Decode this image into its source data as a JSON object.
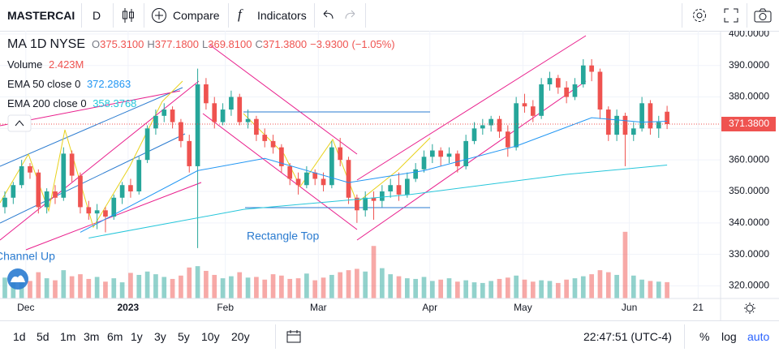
{
  "toolbar": {
    "symbol": "MASTERCAI",
    "interval": "D",
    "compare": "Compare",
    "indicators": "Indicators"
  },
  "chart_data": {
    "type": "candlestick",
    "legend": {
      "symbol": "MA",
      "interval": "1D",
      "exchange": "NYSE",
      "o": "O",
      "h": "H",
      "l": "L",
      "c": "C",
      "open_label": "375.3100",
      "high_label": "377.1800",
      "low_label": "369.8100",
      "close_label": "371.3800",
      "change": "−3.9300",
      "change_pct": "(−1.05%)"
    },
    "volume_name": "Volume",
    "volume_label": "2.423M",
    "open": [
      345,
      348,
      352,
      358,
      356,
      345,
      350,
      348,
      362,
      355,
      345,
      343,
      344,
      342,
      348,
      352,
      350,
      360,
      370,
      374,
      376,
      372,
      366,
      358,
      384,
      378,
      372,
      376,
      380,
      372,
      373,
      368,
      366,
      364,
      358,
      354,
      352,
      356,
      354,
      352,
      364,
      360,
      348,
      344,
      348,
      347,
      350,
      352,
      349,
      354,
      357,
      361,
      363,
      361,
      362,
      358,
      366,
      370,
      371,
      373,
      369,
      364,
      378,
      377,
      374,
      384,
      386,
      383,
      380,
      384,
      390,
      388,
      376,
      368,
      374,
      368,
      370,
      378,
      370,
      375.31
    ],
    "high": [
      350,
      353,
      360,
      359,
      357,
      351,
      352,
      364,
      363,
      356,
      347,
      346,
      345,
      349,
      353,
      354,
      361,
      371,
      376,
      378,
      377,
      373,
      368,
      389,
      386,
      380,
      378,
      382,
      381,
      376,
      374,
      370,
      368,
      365,
      359,
      356,
      358,
      357,
      356,
      366,
      367,
      361,
      349,
      350,
      350,
      352,
      354,
      356,
      356,
      359,
      363,
      365,
      364,
      364,
      363,
      368,
      372,
      373,
      374,
      374,
      371,
      380,
      381,
      379,
      386,
      388,
      387,
      385,
      386,
      392,
      392,
      389,
      377,
      376,
      375,
      372,
      380,
      379,
      374,
      377.18
    ],
    "low": [
      343,
      346,
      351,
      354,
      343,
      343,
      346,
      347,
      353,
      343,
      341,
      338,
      337,
      341,
      346,
      348,
      349,
      359,
      368,
      372,
      370,
      364,
      356,
      332,
      376,
      370,
      371,
      374,
      371,
      370,
      366,
      364,
      362,
      356,
      352,
      349,
      351,
      352,
      350,
      351,
      358,
      346,
      340,
      342,
      341,
      345,
      348,
      347,
      348,
      353,
      356,
      359,
      358,
      359,
      356,
      357,
      365,
      368,
      369,
      367,
      361,
      363,
      375,
      372,
      373,
      382,
      381,
      378,
      379,
      383,
      385,
      373,
      366,
      366,
      358,
      366,
      369,
      368,
      367,
      369.81
    ],
    "close": [
      348,
      352,
      358,
      356,
      345,
      350,
      348,
      362,
      355,
      345,
      343,
      344,
      342,
      348,
      352,
      350,
      360,
      370,
      374,
      376,
      372,
      366,
      358,
      384,
      378,
      372,
      376,
      380,
      372,
      373,
      368,
      366,
      364,
      358,
      354,
      352,
      356,
      354,
      352,
      364,
      360,
      348,
      344,
      348,
      347,
      350,
      352,
      349,
      354,
      357,
      361,
      363,
      361,
      362,
      358,
      366,
      370,
      371,
      373,
      369,
      364,
      378,
      377,
      374,
      384,
      386,
      383,
      380,
      384,
      390,
      388,
      376,
      368,
      374,
      368,
      370,
      378,
      370,
      372,
      371.38
    ],
    "volume": [
      3.1,
      2.8,
      3.4,
      2.6,
      3.9,
      3.0,
      2.7,
      4.2,
      3.3,
      3.6,
      2.9,
      3.2,
      2.5,
      3.0,
      2.4,
      3.8,
      3.5,
      4.0,
      3.6,
      3.2,
      2.9,
      3.4,
      4.6,
      4.8,
      4.1,
      3.5,
      3.0,
      3.3,
      3.9,
      3.1,
      3.2,
      2.8,
      3.6,
      3.4,
      2.9,
      3.0,
      3.7,
      2.7,
      3.1,
      3.5,
      3.9,
      4.2,
      4.4,
      4.0,
      7.8,
      4.5,
      3.6,
      3.3,
      3.0,
      2.9,
      3.2,
      2.6,
      2.8,
      3.0,
      2.5,
      2.7,
      2.4,
      2.3,
      2.6,
      2.9,
      3.1,
      3.4,
      2.8,
      2.5,
      2.7,
      2.6,
      2.3,
      2.8,
      3.0,
      3.3,
      3.6,
      4.2,
      3.9,
      3.5,
      9.9,
      3.4,
      2.8,
      2.6,
      2.5,
      2.423
    ],
    "up_color": "#26a69a",
    "down_color": "#ef5350",
    "ylim": [
      316,
      401
    ],
    "yticks": [
      {
        "value": 320,
        "label": "320.0000"
      },
      {
        "value": 330,
        "label": "330.0000"
      },
      {
        "value": 340,
        "label": "340.0000"
      },
      {
        "value": 350,
        "label": "350.0000"
      },
      {
        "value": 360,
        "label": "360.0000"
      },
      {
        "value": 370,
        "label": "370.0000"
      },
      {
        "value": 380,
        "label": "380.0000"
      },
      {
        "value": 390,
        "label": "390.0000"
      },
      {
        "value": 400,
        "label": "400.0000"
      }
    ],
    "xlim": [
      -0.58,
      85.38
    ],
    "xticks": [
      {
        "value": 2.5,
        "label": "Dec"
      },
      {
        "value": 14.7,
        "label": "2023"
      },
      {
        "value": 26.3,
        "label": "Feb"
      },
      {
        "value": 37.4,
        "label": "Mar"
      },
      {
        "value": 50.7,
        "label": "Apr"
      },
      {
        "value": 61.8,
        "label": "May"
      },
      {
        "value": 74.5,
        "label": "Jun"
      },
      {
        "value": 82.7,
        "label": "21"
      }
    ],
    "volume_lim": [
      0,
      10.6
    ],
    "last_price_label": "371.3800",
    "lines": [
      {
        "name": "EMA 50 close 0",
        "color": "#2196f3",
        "x": [
          9,
          23,
          31,
          41,
          50,
          61,
          70,
          76,
          79
        ],
        "values": [
          337,
          356.6,
          360.5,
          352.8,
          356.6,
          364.4,
          373.4,
          372,
          372.2863
        ],
        "value_label": "372.2863"
      },
      {
        "name": "EMA 200 close 0",
        "color": "#26c6da",
        "x": [
          10,
          28.5,
          48,
          67,
          79
        ],
        "values": [
          335.2,
          344.3,
          348.9,
          355.4,
          358.3768
        ],
        "value_label": "358.3768"
      }
    ],
    "annotations": [
      "Rectangle Top",
      "Channel Up"
    ]
  },
  "bottom_bar": {
    "ranges": [
      "1d",
      "5d",
      "1m",
      "3m",
      "6m",
      "1y",
      "3y",
      "5y",
      "10y",
      "20y"
    ],
    "time": "22:47:51 (UTC-4)",
    "percent": "%",
    "log": "log",
    "auto": "auto"
  }
}
